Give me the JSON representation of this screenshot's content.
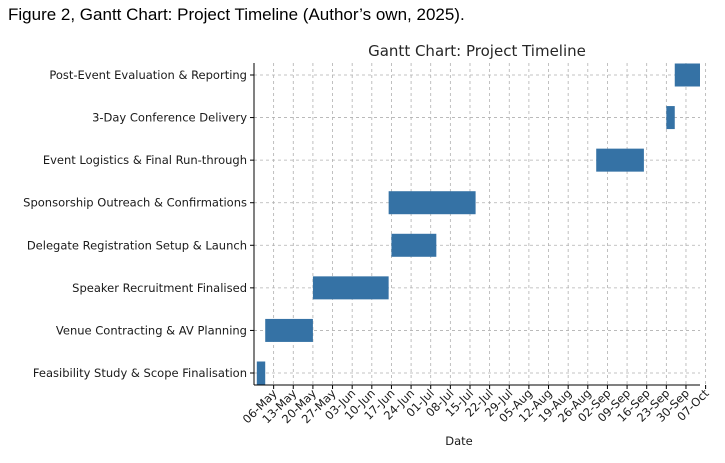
{
  "caption": "Figure 2, Gantt Chart: Project Timeline (Author’s own, 2025).",
  "chart_data": {
    "type": "gantt",
    "title": "Gantt Chart: Project Timeline",
    "xlabel": "Date",
    "ylabel": "",
    "grid": true,
    "x_ticks": [
      "06-May",
      "13-May",
      "20-May",
      "27-May",
      "03-Jun",
      "10-Jun",
      "17-Jun",
      "24-Jun",
      "01-Jul",
      "08-Jul",
      "15-Jul",
      "22-Jul",
      "29-Jul",
      "05-Aug",
      "12-Aug",
      "19-Aug",
      "26-Aug",
      "02-Sep",
      "09-Sep",
      "16-Sep",
      "23-Sep",
      "30-Sep",
      "07-Oct"
    ],
    "xlim": [
      "2025-04-29",
      "2025-10-05"
    ],
    "tasks": [
      {
        "name": "Feasibility Study & Scope Finalisation",
        "start": "2025-04-30",
        "end": "2025-05-03"
      },
      {
        "name": "Venue Contracting & AV Planning",
        "start": "2025-05-03",
        "end": "2025-05-20"
      },
      {
        "name": "Speaker Recruitment Finalised",
        "start": "2025-05-20",
        "end": "2025-06-16"
      },
      {
        "name": "Delegate Registration Setup & Launch",
        "start": "2025-06-17",
        "end": "2025-07-03"
      },
      {
        "name": "Sponsorship Outreach & Confirmations",
        "start": "2025-06-16",
        "end": "2025-07-17"
      },
      {
        "name": "Event Logistics & Final Run-through",
        "start": "2025-08-29",
        "end": "2025-09-15"
      },
      {
        "name": "3-Day Conference Delivery",
        "start": "2025-09-23",
        "end": "2025-09-26"
      },
      {
        "name": "Post-Event Evaluation & Reporting",
        "start": "2025-09-26",
        "end": "2025-10-05"
      }
    ],
    "bar_color": "#3572a5"
  }
}
